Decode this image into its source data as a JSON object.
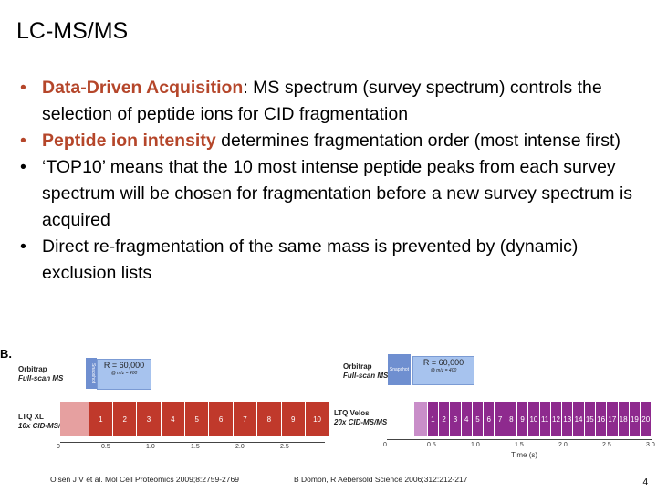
{
  "slide": {
    "title": "LC-MS/MS",
    "bullets": [
      {
        "highlight": "Data-Driven Acquisition",
        "text": ": MS spectrum (survey spectrum) controls the selection of peptide ions for CID fragmentation"
      },
      {
        "highlight": "Peptide ion intensity",
        "text": " determines fragmentation order (most intense first)"
      },
      {
        "highlight": "",
        "text": "‘TOP10’ means that the 10 most intense peptide peaks from each survey spectrum will be chosen for fragmentation before a new survey spectrum is acquired"
      },
      {
        "highlight": "",
        "text": "Direct re-fragmentation of the same mass is prevented by (dynamic) exclusion lists"
      }
    ],
    "page_number": "4"
  },
  "figure_left": {
    "panel_letter": "B.",
    "orbitrap_label": "Orbitrap",
    "orbitrap_sub": "Full-scan MS",
    "ltq_label": "LTQ XL",
    "ltq_sub": "10x CID-MS/MS",
    "snapshot": "Snapshot",
    "resolution": "R = 60,000",
    "resolution_sub": "@ m/z = 400",
    "segments": [
      "1",
      "2",
      "3",
      "4",
      "5",
      "6",
      "7",
      "8",
      "9",
      "10"
    ],
    "ticks": [
      "0",
      "0.5",
      "1.0",
      "1.5",
      "2.0",
      "2.5"
    ],
    "citation": "Olsen J V et al. Mol Cell Proteomics 2009;8:2759-2769"
  },
  "figure_right": {
    "orbitrap_label": "Orbitrap",
    "orbitrap_sub": "Full-scan MS",
    "ltq_label": "LTQ Velos",
    "ltq_sub": "20x CID-MS/MS",
    "snapshot": "Snapshot",
    "resolution": "R = 60,000",
    "resolution_sub": "@ m/z = 400",
    "segments": [
      "1",
      "2",
      "3",
      "4",
      "5",
      "6",
      "7",
      "8",
      "9",
      "10",
      "11",
      "12",
      "13",
      "14",
      "15",
      "16",
      "17",
      "18",
      "19",
      "20"
    ],
    "ticks": [
      "0",
      "0.5",
      "1.0",
      "1.5",
      "2.0",
      "2.5",
      "3.0"
    ],
    "axis_label": "Time (s)",
    "citation": "B Domon, R Aebersold Science 2006;312:212-217"
  }
}
